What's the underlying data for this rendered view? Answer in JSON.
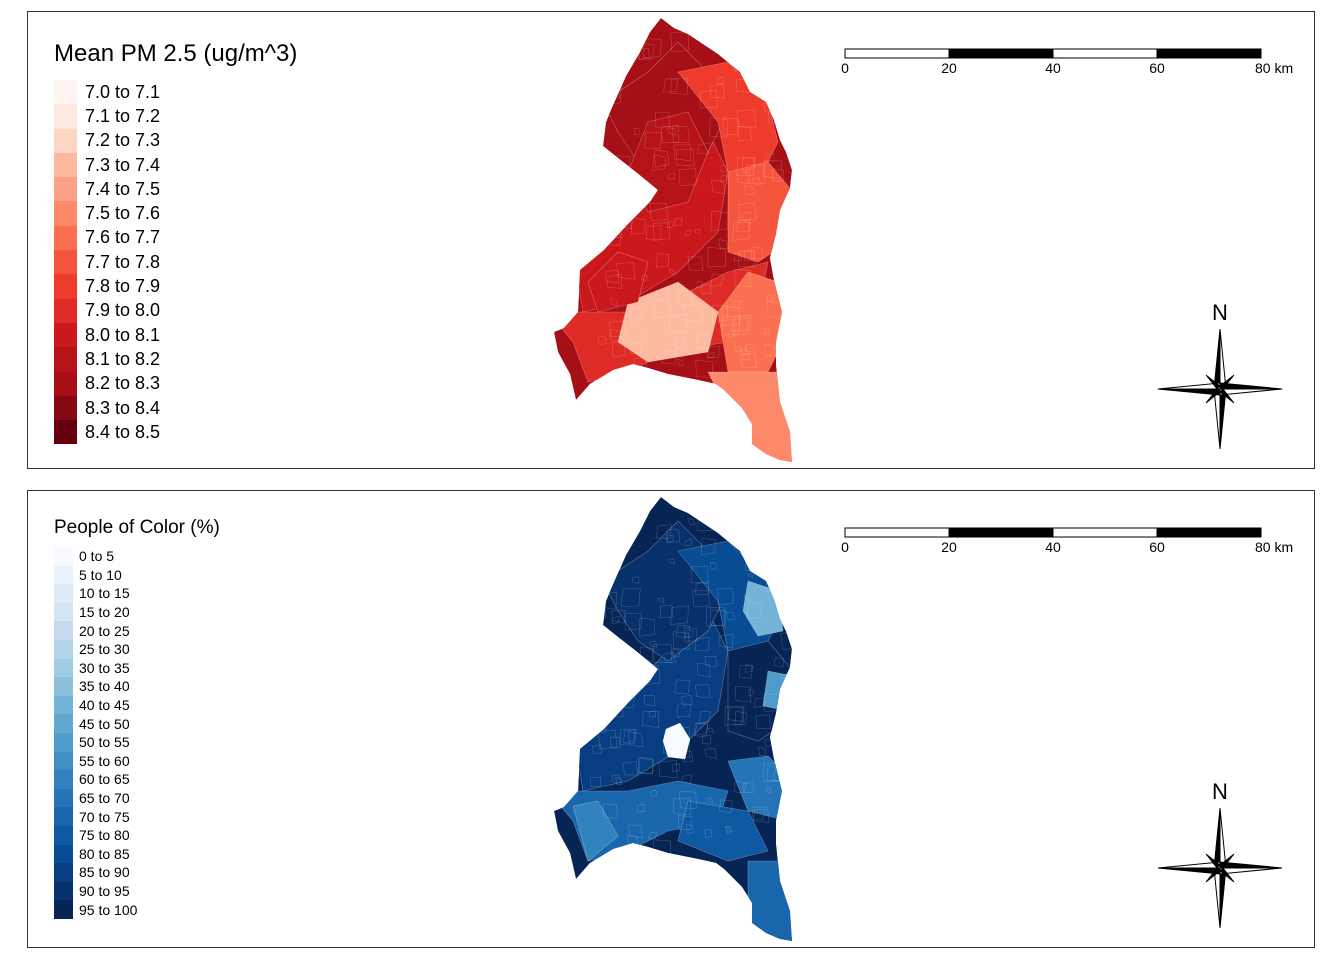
{
  "maps": [
    {
      "legend_title": "Mean PM 2.5 (ug/m^3)",
      "legend_items": [
        {
          "label": "7.0 to 7.1",
          "color": "#fff5f0"
        },
        {
          "label": "7.1 to 7.2",
          "color": "#fee8df"
        },
        {
          "label": "7.2 to 7.3",
          "color": "#fdd5c3"
        },
        {
          "label": "7.3 to 7.4",
          "color": "#fcbba1"
        },
        {
          "label": "7.4 to 7.5",
          "color": "#fca185"
        },
        {
          "label": "7.5 to 7.6",
          "color": "#fc8a6a"
        },
        {
          "label": "7.6 to 7.7",
          "color": "#fb7050"
        },
        {
          "label": "7.7 to 7.8",
          "color": "#f6553d"
        },
        {
          "label": "7.8 to 7.9",
          "color": "#ef3b2c"
        },
        {
          "label": "7.9 to 8.0",
          "color": "#de2b25"
        },
        {
          "label": "8.0 to 8.1",
          "color": "#cb181d"
        },
        {
          "label": "8.1 to 8.2",
          "color": "#b61319"
        },
        {
          "label": "8.2 to 8.3",
          "color": "#a50f15"
        },
        {
          "label": "8.3 to 8.4",
          "color": "#850812"
        },
        {
          "label": "8.4 to 8.5",
          "color": "#67000d"
        }
      ],
      "region_palette": [
        "#a50f15",
        "#b61319",
        "#cb181d",
        "#de2b25",
        "#ef3b2c",
        "#f6553d",
        "#fb7050",
        "#fc8a6a",
        "#fcbba1"
      ],
      "scale_bar": {
        "labels": [
          "0",
          "20",
          "40",
          "60",
          "80 km"
        ]
      },
      "north_arrow": {
        "label": "N"
      }
    },
    {
      "legend_title": "People of Color (%)",
      "legend_items": [
        {
          "label": "0 to 5",
          "color": "#f7fbff"
        },
        {
          "label": "5 to 10",
          "color": "#eaf3fb"
        },
        {
          "label": "10 to 15",
          "color": "#deebf7"
        },
        {
          "label": "15 to 20",
          "color": "#d3e4f3"
        },
        {
          "label": "20 to 25",
          "color": "#c6dbef"
        },
        {
          "label": "25 to 30",
          "color": "#b3d3e8"
        },
        {
          "label": "30 to 35",
          "color": "#a1cbe2"
        },
        {
          "label": "35 to 40",
          "color": "#8cc0dd"
        },
        {
          "label": "40 to 45",
          "color": "#75b4d8"
        },
        {
          "label": "45 to 50",
          "color": "#61a7d2"
        },
        {
          "label": "50 to 55",
          "color": "#4f9bcb"
        },
        {
          "label": "55 to 60",
          "color": "#3f8fc5"
        },
        {
          "label": "60 to 65",
          "color": "#3282be"
        },
        {
          "label": "65 to 70",
          "color": "#2474b7"
        },
        {
          "label": "70 to 75",
          "color": "#1966ad"
        },
        {
          "label": "75 to 80",
          "color": "#0e59a2"
        },
        {
          "label": "80 to 85",
          "color": "#084c94"
        },
        {
          "label": "85 to 90",
          "color": "#083e81"
        },
        {
          "label": "90 to 95",
          "color": "#08306b"
        },
        {
          "label": "95 to 100",
          "color": "#062454"
        }
      ],
      "region_palette": [
        "#062454",
        "#08306b",
        "#083e81",
        "#084c94",
        "#0e59a2",
        "#1966ad",
        "#2474b7",
        "#3282be",
        "#4f9bcb",
        "#75b4d8",
        "#8cc0dd",
        "#f7fbff"
      ],
      "scale_bar": {
        "labels": [
          "0",
          "20",
          "40",
          "60",
          "80 km"
        ]
      },
      "north_arrow": {
        "label": "N"
      }
    }
  ]
}
